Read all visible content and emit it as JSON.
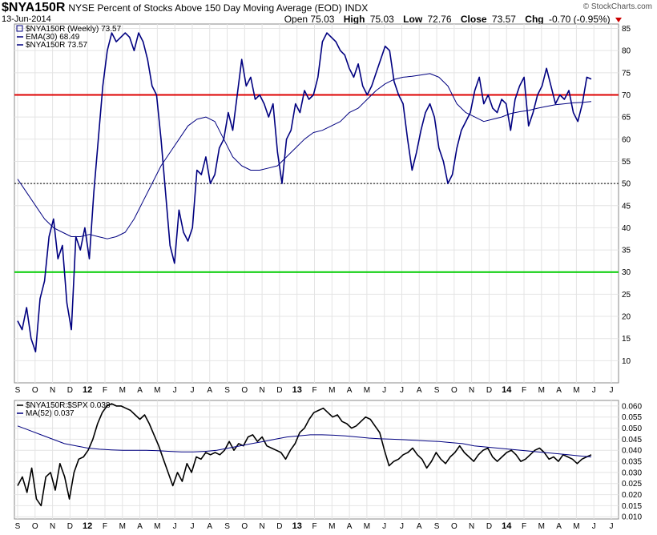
{
  "header": {
    "symbol": "$NYA150R",
    "description": "NYSE Percent of Stocks Above 150 Day Moving Average (EOD)",
    "exchange": "INDX",
    "date": "13-Jun-2014",
    "brand": "© StockCharts.com",
    "open_label": "Open",
    "open": "75.03",
    "high_label": "High",
    "high": "75.03",
    "low_label": "Low",
    "low": "72.76",
    "close_label": "Close",
    "close": "73.57",
    "chg_label": "Chg",
    "chg": "-0.70 (-0.95%)"
  },
  "chart_data": [
    {
      "type": "line",
      "legend": [
        "$NYA150R (Weekly) 73.57",
        "EMA(30) 68.49",
        "$NYA150R 73.57"
      ],
      "x_ticks": [
        "S",
        "O",
        "N",
        "D",
        "12",
        "F",
        "M",
        "A",
        "M",
        "J",
        "J",
        "A",
        "S",
        "O",
        "N",
        "D",
        "13",
        "F",
        "M",
        "A",
        "M",
        "J",
        "J",
        "A",
        "S",
        "O",
        "N",
        "D",
        "14",
        "F",
        "M",
        "A",
        "M",
        "J",
        "J"
      ],
      "ylim": [
        5,
        86
      ],
      "y_ticks": [
        10,
        15,
        20,
        25,
        30,
        35,
        40,
        45,
        50,
        55,
        60,
        65,
        70,
        75,
        80,
        85
      ],
      "hlines": [
        {
          "value": 70,
          "color": "#dd0000",
          "style": "solid"
        },
        {
          "value": 50,
          "color": "#000000",
          "style": "dotted"
        },
        {
          "value": 30,
          "color": "#00cc00",
          "style": "solid"
        }
      ],
      "series": [
        {
          "name": "$NYA150R",
          "color": "#000080",
          "values": [
            19,
            17,
            22,
            15,
            12,
            24,
            28,
            38,
            42,
            33,
            36,
            23,
            17,
            38,
            35,
            40,
            33,
            48,
            60,
            72,
            80,
            84,
            82,
            83,
            84,
            83,
            80,
            84,
            82,
            78,
            72,
            70,
            60,
            48,
            36,
            32,
            44,
            39,
            37,
            40,
            53,
            52,
            56,
            50,
            52,
            58,
            60,
            66,
            62,
            70,
            78,
            72,
            74,
            69,
            70,
            68,
            65,
            68,
            57,
            50,
            60,
            62,
            68,
            66,
            71,
            69,
            70,
            74,
            82,
            84,
            83,
            82,
            80,
            79,
            76,
            74,
            77,
            72,
            70,
            72,
            75,
            78,
            81,
            80,
            73,
            70,
            68,
            60,
            53,
            57,
            62,
            66,
            68,
            65,
            58,
            55,
            50,
            52,
            58,
            62,
            64,
            66,
            71,
            74,
            68,
            70,
            67,
            66,
            69,
            68,
            62,
            69,
            72,
            74,
            63,
            66,
            70,
            72,
            76,
            72,
            68,
            70,
            69,
            71,
            66,
            64,
            68,
            74,
            73.57
          ]
        },
        {
          "name": "EMA(30)",
          "color": "#000080",
          "values": [
            51,
            48,
            45,
            42,
            40,
            39,
            38,
            38,
            38.5,
            38,
            37.5,
            38,
            39,
            42,
            46,
            50,
            54,
            57,
            60,
            63,
            64.5,
            65,
            64,
            60,
            56,
            54,
            53,
            53,
            53.5,
            54,
            56,
            58,
            60,
            61.5,
            62,
            63,
            64,
            66,
            67,
            69,
            71,
            72.5,
            73.5,
            74,
            74.2,
            74.5,
            74.8,
            74,
            72,
            68,
            66,
            65,
            64,
            64.5,
            65,
            65.8,
            66.2,
            66.5,
            67,
            67.4,
            67.8,
            68,
            68.2,
            68.3,
            68.49
          ]
        }
      ]
    },
    {
      "type": "line",
      "legend": [
        "$NYA150R:$SPX 0.038",
        "MA(52) 0.037"
      ],
      "x_ticks": [
        "S",
        "O",
        "N",
        "D",
        "12",
        "F",
        "M",
        "A",
        "M",
        "J",
        "J",
        "A",
        "S",
        "O",
        "N",
        "D",
        "13",
        "F",
        "M",
        "A",
        "M",
        "J",
        "J",
        "A",
        "S",
        "O",
        "N",
        "D",
        "14",
        "F",
        "M",
        "A",
        "M",
        "J",
        "J"
      ],
      "ylim": [
        0.009,
        0.0625
      ],
      "y_ticks": [
        "0.010",
        "0.015",
        "0.020",
        "0.025",
        "0.030",
        "0.035",
        "0.040",
        "0.045",
        "0.050",
        "0.055",
        "0.060"
      ],
      "series": [
        {
          "name": "$NYA150R:$SPX",
          "color": "#000000",
          "values": [
            0.024,
            0.028,
            0.021,
            0.032,
            0.018,
            0.015,
            0.028,
            0.03,
            0.022,
            0.034,
            0.028,
            0.018,
            0.03,
            0.036,
            0.037,
            0.04,
            0.045,
            0.052,
            0.057,
            0.06,
            0.061,
            0.06,
            0.06,
            0.059,
            0.058,
            0.056,
            0.054,
            0.056,
            0.052,
            0.047,
            0.042,
            0.036,
            0.03,
            0.024,
            0.03,
            0.026,
            0.034,
            0.03,
            0.037,
            0.036,
            0.039,
            0.038,
            0.039,
            0.038,
            0.04,
            0.044,
            0.04,
            0.043,
            0.042,
            0.046,
            0.047,
            0.044,
            0.046,
            0.042,
            0.041,
            0.04,
            0.039,
            0.036,
            0.04,
            0.043,
            0.048,
            0.05,
            0.054,
            0.057,
            0.058,
            0.059,
            0.057,
            0.055,
            0.056,
            0.053,
            0.052,
            0.05,
            0.051,
            0.053,
            0.055,
            0.054,
            0.051,
            0.048,
            0.04,
            0.033,
            0.035,
            0.036,
            0.038,
            0.039,
            0.041,
            0.038,
            0.036,
            0.032,
            0.035,
            0.039,
            0.036,
            0.034,
            0.037,
            0.039,
            0.042,
            0.039,
            0.037,
            0.035,
            0.038,
            0.04,
            0.041,
            0.037,
            0.035,
            0.037,
            0.039,
            0.04,
            0.038,
            0.035,
            0.036,
            0.038,
            0.04,
            0.041,
            0.039,
            0.036,
            0.037,
            0.035,
            0.038,
            0.037,
            0.036,
            0.034,
            0.036,
            0.037,
            0.038
          ]
        },
        {
          "name": "MA(52)",
          "color": "#000080",
          "values": [
            0.051,
            0.049,
            0.047,
            0.045,
            0.043,
            0.042,
            0.041,
            0.0405,
            0.0402,
            0.04,
            0.04,
            0.04,
            0.0398,
            0.0395,
            0.0393,
            0.0393,
            0.0395,
            0.04,
            0.041,
            0.042,
            0.043,
            0.044,
            0.045,
            0.046,
            0.0465,
            0.047,
            0.047,
            0.0468,
            0.0465,
            0.046,
            0.0455,
            0.0452,
            0.045,
            0.0448,
            0.0445,
            0.0442,
            0.044,
            0.0435,
            0.043,
            0.042,
            0.0415,
            0.041,
            0.0405,
            0.04,
            0.0395,
            0.039,
            0.0385,
            0.038,
            0.0375,
            0.037
          ]
        }
      ]
    }
  ]
}
